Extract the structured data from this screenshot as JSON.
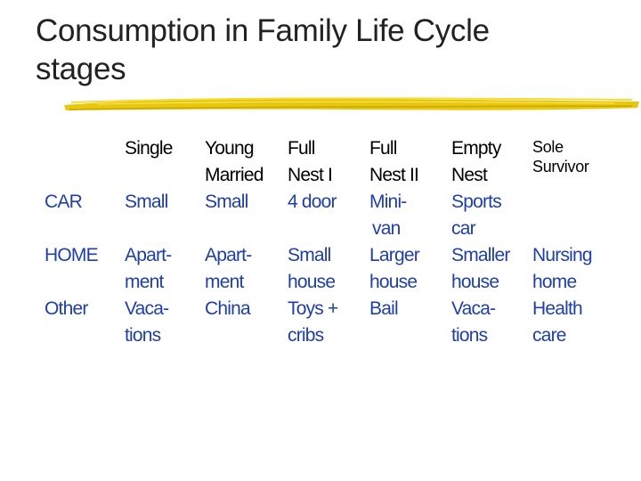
{
  "slide": {
    "title_line1": "Consumption in Family Life Cycle",
    "title_line2": "stages",
    "accent_color": "#e8c400",
    "text_color": "#1f3fa6"
  },
  "columns": [
    {
      "lines": [
        "Single"
      ]
    },
    {
      "lines": [
        "Young",
        "Married"
      ]
    },
    {
      "lines": [
        "Full",
        "Nest I"
      ]
    },
    {
      "lines": [
        "Full",
        "Nest II"
      ]
    },
    {
      "lines": [
        "Empty",
        "Nest"
      ]
    },
    {
      "lines": [
        "Sole",
        "Survivor"
      ]
    }
  ],
  "rows": {
    "car": {
      "label": "CAR",
      "cells": [
        [
          "Small"
        ],
        [
          "Small"
        ],
        [
          "4 door"
        ],
        [
          "Mini-",
          "van"
        ],
        [
          "Sports",
          "car"
        ],
        []
      ]
    },
    "home": {
      "label": "HOME",
      "cells": [
        [
          "Apart-",
          "ment"
        ],
        [
          "Apart-",
          "ment"
        ],
        [
          "Small",
          "house"
        ],
        [
          "Larger",
          "house"
        ],
        [
          "Smaller",
          "house"
        ],
        [
          "Nursing",
          "home"
        ]
      ]
    },
    "other": {
      "label": "Other",
      "cells": [
        [
          "Vaca-",
          "tions"
        ],
        [
          "China"
        ],
        [
          "Toys +",
          "cribs"
        ],
        [
          "Bail"
        ],
        [
          "Vaca-",
          "tions"
        ],
        [
          "Health",
          "care"
        ]
      ]
    }
  }
}
